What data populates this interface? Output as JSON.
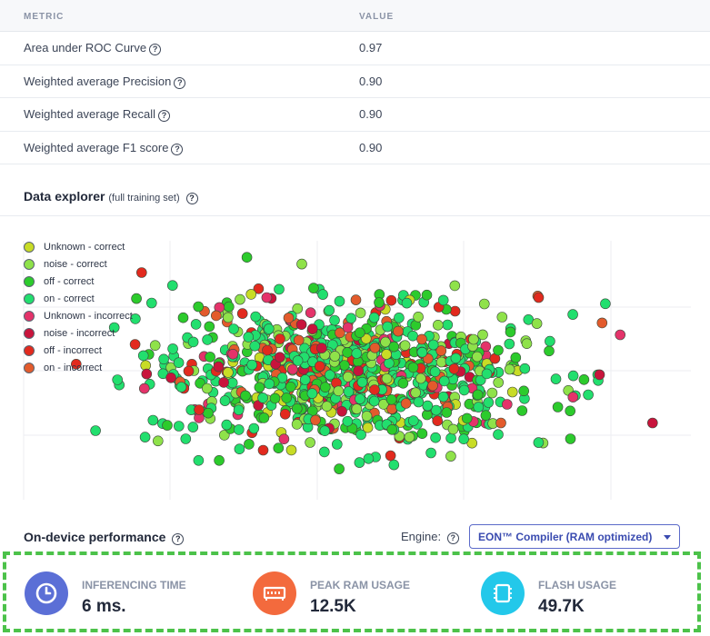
{
  "metrics": {
    "header_metric": "METRIC",
    "header_value": "VALUE",
    "rows": [
      {
        "name": "Area under ROC Curve",
        "value": "0.97"
      },
      {
        "name": "Weighted average Precision",
        "value": "0.90"
      },
      {
        "name": "Weighted average Recall",
        "value": "0.90"
      },
      {
        "name": "Weighted average F1 score",
        "value": "0.90"
      }
    ]
  },
  "explorer": {
    "title": "Data explorer",
    "subtitle": "(full training set)"
  },
  "legend": [
    {
      "label": "Unknown - correct",
      "color": "#c8dc26"
    },
    {
      "label": "noise - correct",
      "color": "#8fe24a"
    },
    {
      "label": "off - correct",
      "color": "#2ccb2c"
    },
    {
      "label": "on - correct",
      "color": "#22df6e"
    },
    {
      "label": "Unknown - incorrect",
      "color": "#e4336a"
    },
    {
      "label": "noise - incorrect",
      "color": "#c8143c"
    },
    {
      "label": "off - incorrect",
      "color": "#e22a1e"
    },
    {
      "label": "on - incorrect",
      "color": "#e35b2c"
    }
  ],
  "performance": {
    "title": "On-device performance",
    "engine_label": "Engine:",
    "engine_value": "EON™ Compiler (RAM optimized)",
    "items": [
      {
        "label": "INFERENCING TIME",
        "value": "6 ms.",
        "color": "#5b6fd6",
        "icon": "clock-icon"
      },
      {
        "label": "PEAK RAM USAGE",
        "value": "12.5K",
        "color": "#f36a3d",
        "icon": "ram-icon"
      },
      {
        "label": "FLASH USAGE",
        "value": "49.7K",
        "color": "#23c8ea",
        "icon": "chip-icon"
      }
    ]
  }
}
